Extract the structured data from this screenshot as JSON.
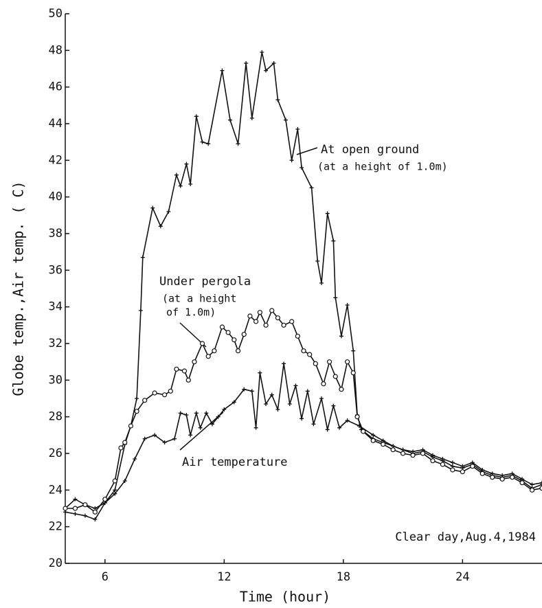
{
  "chart_data": {
    "type": "line",
    "ylabel": "Globe temp.,Air temp. ( C)",
    "xlabel": "Time (hour)",
    "xlim": [
      4,
      28
    ],
    "xticks": [
      6,
      12,
      18,
      24
    ],
    "ylim": [
      20,
      50
    ],
    "yticks": [
      20,
      22,
      24,
      26,
      28,
      30,
      32,
      34,
      36,
      38,
      40,
      42,
      44,
      46,
      48,
      50
    ],
    "annotations": [
      "At open ground",
      "(at a height of 1.0m)",
      "Under pergola",
      "(at a height",
      "of 1.0m)",
      "Air temperature",
      "Clear day,Aug.4,1984"
    ],
    "series": [
      {
        "name": "At open ground",
        "color": "#111111",
        "x": [
          4,
          4.5,
          5,
          5.5,
          6,
          6.5,
          7,
          7.3,
          7.6,
          7.8,
          7.9,
          8.4,
          8.8,
          9.2,
          9.6,
          9.8,
          10.1,
          10.3,
          10.6,
          10.9,
          11.2,
          11.9,
          12.3,
          12.7,
          13.1,
          13.4,
          13.9,
          14.1,
          14.5,
          14.7,
          15.1,
          15.4,
          15.7,
          15.9,
          16.4,
          16.7,
          16.9,
          17.2,
          17.5,
          17.6,
          17.9,
          18.2,
          18.5,
          18.7,
          18.9,
          19.5,
          20,
          20.5,
          21,
          21.5,
          22,
          22.5,
          23,
          23.5,
          24,
          24.5,
          25,
          25.5,
          26,
          26.5,
          27,
          27.5,
          28
        ],
        "values": [
          23.0,
          23.5,
          23.2,
          23.0,
          23.3,
          24.0,
          26.5,
          27.5,
          29.0,
          33.8,
          36.7,
          39.4,
          38.4,
          39.2,
          41.2,
          40.6,
          41.8,
          40.7,
          44.4,
          43.0,
          42.9,
          46.9,
          44.2,
          42.9,
          47.3,
          44.3,
          47.9,
          46.9,
          47.3,
          45.3,
          44.2,
          42.0,
          43.7,
          41.6,
          40.5,
          36.5,
          35.3,
          39.1,
          37.6,
          34.5,
          32.4,
          34.1,
          31.6,
          28.1,
          27.3,
          26.8,
          26.6,
          26.4,
          26.2,
          26.0,
          26.1,
          25.8,
          25.6,
          25.3,
          25.2,
          25.4,
          25.0,
          24.8,
          24.7,
          24.8,
          24.5,
          24.1,
          24.3
        ]
      },
      {
        "name": "Under pergola",
        "color": "#111111",
        "x": [
          4,
          4.5,
          5,
          5.5,
          6,
          6.5,
          6.8,
          7,
          7.3,
          7.6,
          8,
          8.5,
          9,
          9.3,
          9.6,
          10,
          10.2,
          10.5,
          10.9,
          11.2,
          11.5,
          11.9,
          12.2,
          12.5,
          12.7,
          13,
          13.3,
          13.6,
          13.8,
          14.1,
          14.4,
          14.7,
          15,
          15.4,
          15.7,
          16,
          16.3,
          16.6,
          17,
          17.3,
          17.6,
          17.9,
          18.2,
          18.5,
          18.7,
          19,
          19.5,
          20,
          20.5,
          21,
          21.5,
          22,
          22.5,
          23,
          23.5,
          24,
          24.5,
          25,
          25.5,
          26,
          26.5,
          27,
          27.5,
          28
        ],
        "values": [
          23.0,
          23.0,
          23.2,
          22.8,
          23.5,
          24.5,
          26.3,
          26.6,
          27.5,
          28.3,
          28.9,
          29.3,
          29.2,
          29.4,
          30.6,
          30.5,
          30.0,
          31.0,
          32.0,
          31.3,
          31.6,
          32.9,
          32.6,
          32.2,
          31.6,
          32.5,
          33.5,
          33.2,
          33.7,
          33.0,
          33.8,
          33.4,
          33.0,
          33.2,
          32.4,
          31.6,
          31.4,
          30.9,
          29.8,
          31.0,
          30.2,
          29.5,
          31.0,
          30.4,
          28.0,
          27.2,
          26.7,
          26.5,
          26.2,
          26.0,
          25.9,
          26.0,
          25.6,
          25.4,
          25.1,
          25.0,
          25.3,
          24.9,
          24.7,
          24.6,
          24.7,
          24.4,
          24.0,
          24.1
        ]
      },
      {
        "name": "Air temperature",
        "color": "#111111",
        "x": [
          4,
          4.5,
          5,
          5.5,
          6,
          6.5,
          7,
          7.5,
          8,
          8.5,
          9,
          9.5,
          9.8,
          10.1,
          10.3,
          10.6,
          10.8,
          11.1,
          11.4,
          11.7,
          12,
          12.5,
          13,
          13.4,
          13.6,
          13.8,
          14.1,
          14.4,
          14.7,
          15,
          15.3,
          15.6,
          15.9,
          16.2,
          16.5,
          16.9,
          17.2,
          17.5,
          17.8,
          18.2,
          18.8,
          19.5,
          20,
          20.5,
          21,
          21.5,
          22,
          22.5,
          23,
          23.5,
          24,
          24.5,
          25,
          25.5,
          26,
          26.5,
          27,
          27.5,
          28
        ],
        "values": [
          22.8,
          22.7,
          22.6,
          22.4,
          23.3,
          23.8,
          24.5,
          25.7,
          26.8,
          27.0,
          26.6,
          26.8,
          28.2,
          28.1,
          27.0,
          28.2,
          27.4,
          28.2,
          27.6,
          28.0,
          28.4,
          28.8,
          29.5,
          29.4,
          27.4,
          30.4,
          28.7,
          29.2,
          28.4,
          30.9,
          28.7,
          29.7,
          27.9,
          29.4,
          27.6,
          29.0,
          27.3,
          28.6,
          27.4,
          27.8,
          27.5,
          27.0,
          26.7,
          26.4,
          26.2,
          26.1,
          26.2,
          25.9,
          25.7,
          25.5,
          25.3,
          25.5,
          25.1,
          24.9,
          24.8,
          24.9,
          24.6,
          24.3,
          24.4
        ]
      }
    ]
  }
}
